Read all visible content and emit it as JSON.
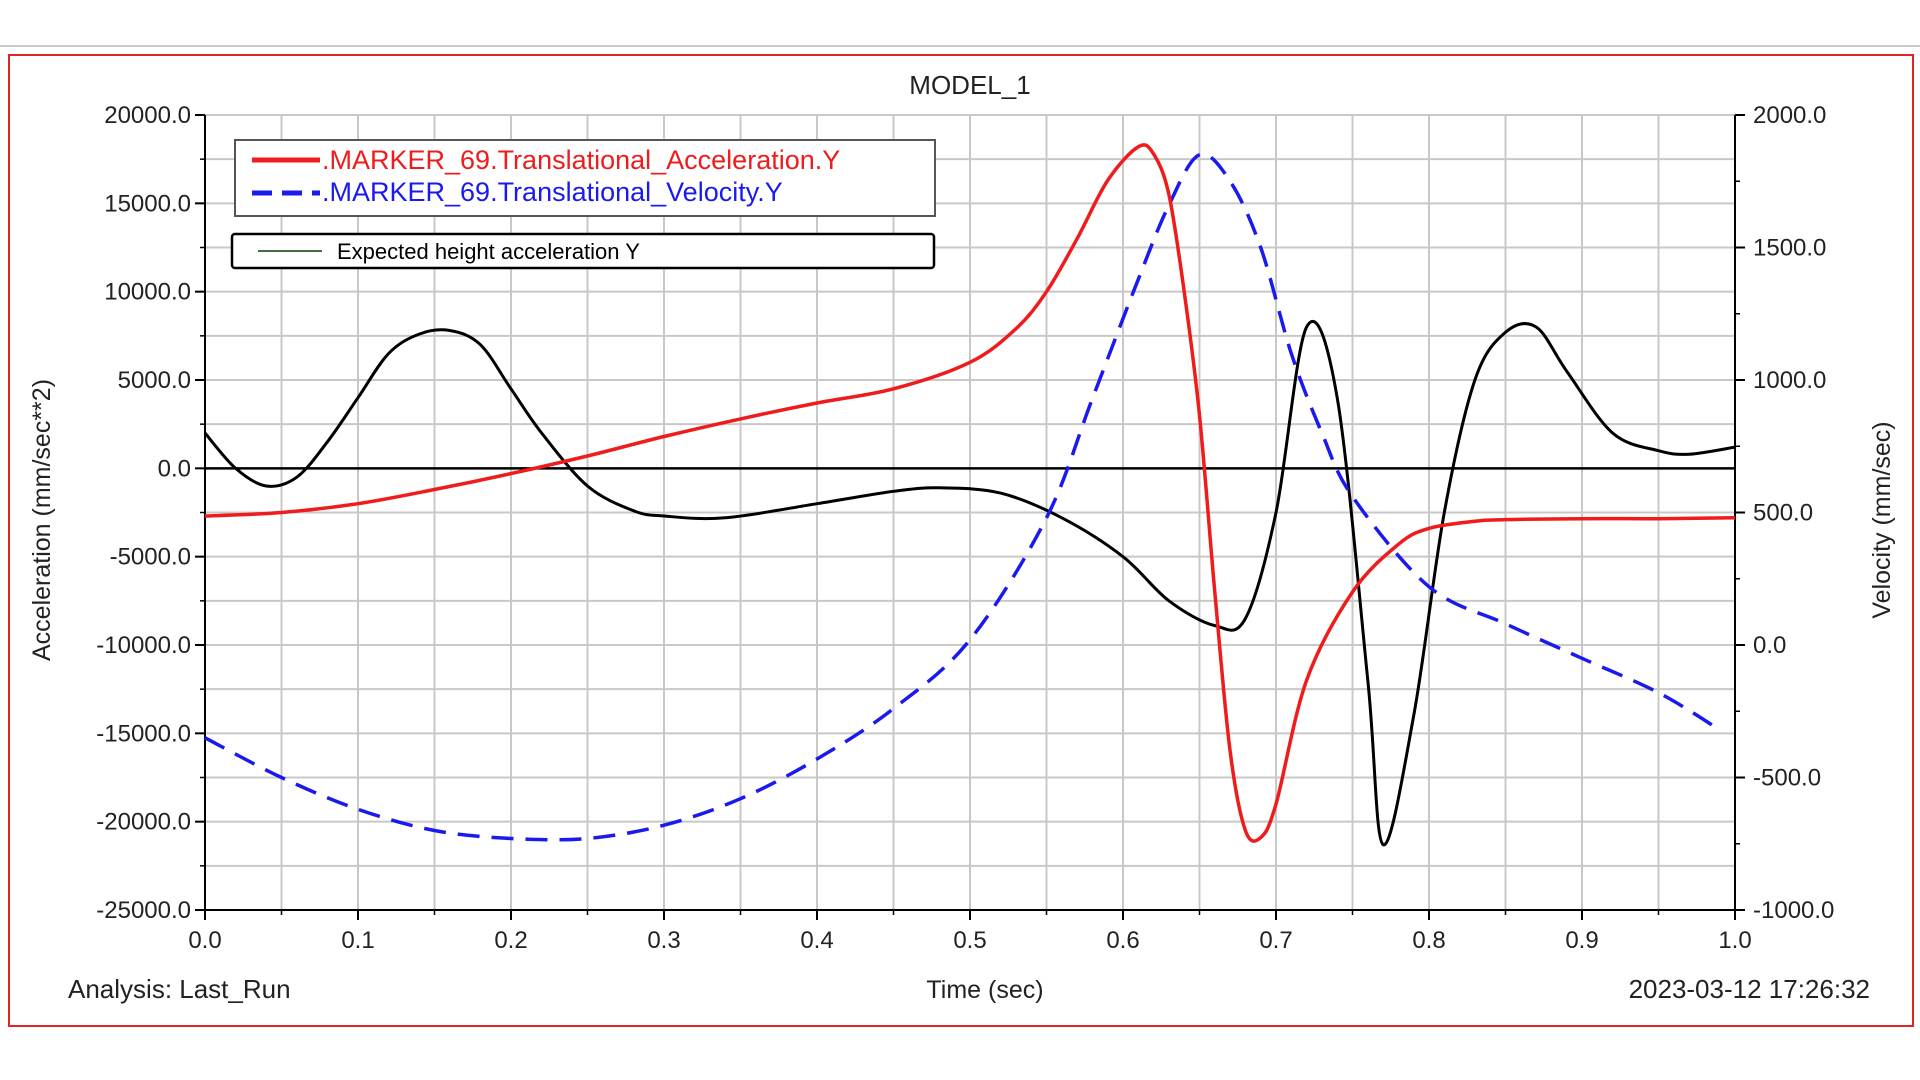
{
  "chart_data": {
    "type": "line",
    "title": "MODEL_1",
    "xlabel": "Time (sec)",
    "ylabel_left": "Acceleration (mm/sec**2)",
    "ylabel_right": "Velocity (mm/sec)",
    "xlim": [
      0.0,
      1.0
    ],
    "ylim_left": [
      -25000.0,
      20000.0
    ],
    "ylim_right": [
      -1000.0,
      2000.0
    ],
    "x_ticks": [
      "0.0",
      "0.1",
      "0.2",
      "0.3",
      "0.4",
      "0.5",
      "0.6",
      "0.7",
      "0.8",
      "0.9",
      "1.0"
    ],
    "y_left_ticks": [
      "20000.0",
      "15000.0",
      "10000.0",
      "5000.0",
      "0.0",
      "-5000.0",
      "-10000.0",
      "-15000.0",
      "-20000.0",
      "-25000.0"
    ],
    "y_right_ticks": [
      "2000.0",
      "1500.0",
      "1000.0",
      "500.0",
      "0.0",
      "-500.0",
      "-1000.0"
    ],
    "grid": true,
    "legend_position": "top-left",
    "footer_left": "Analysis:  Last_Run",
    "footer_right": "2023-03-12 17:26:32",
    "series": [
      {
        "name": ".MARKER_69.Translational_Acceleration.Y",
        "axis": "left",
        "color": "#ee1c1c",
        "style": "solid",
        "x": [
          0.0,
          0.05,
          0.1,
          0.15,
          0.2,
          0.25,
          0.3,
          0.35,
          0.4,
          0.45,
          0.5,
          0.53,
          0.55,
          0.57,
          0.59,
          0.61,
          0.62,
          0.63,
          0.64,
          0.65,
          0.66,
          0.67,
          0.68,
          0.69,
          0.7,
          0.72,
          0.75,
          0.78,
          0.8,
          0.83,
          0.85,
          0.9,
          0.95,
          1.0
        ],
        "y": [
          -2700,
          -2500,
          -2000,
          -1200,
          -300,
          700,
          1800,
          2800,
          3700,
          4500,
          6000,
          7900,
          10000,
          13000,
          16300,
          18200,
          17800,
          15500,
          10000,
          3000,
          -7000,
          -16000,
          -20500,
          -20900,
          -19000,
          -12000,
          -7000,
          -4300,
          -3400,
          -3000,
          -2900,
          -2850,
          -2850,
          -2800
        ]
      },
      {
        "name": ".MARKER_69.Translational_Velocity.Y",
        "axis": "right",
        "color": "#1a1aee",
        "style": "dashed",
        "x": [
          0.0,
          0.05,
          0.1,
          0.15,
          0.2,
          0.25,
          0.3,
          0.35,
          0.4,
          0.45,
          0.5,
          0.55,
          0.58,
          0.61,
          0.63,
          0.65,
          0.67,
          0.69,
          0.71,
          0.73,
          0.75,
          0.8,
          0.85,
          0.9,
          0.95,
          0.99
        ],
        "y": [
          -350,
          -500,
          -620,
          -700,
          -730,
          -730,
          -680,
          -580,
          -430,
          -240,
          20,
          480,
          930,
          1380,
          1660,
          1850,
          1750,
          1500,
          1100,
          800,
          560,
          220,
          80,
          -50,
          -180,
          -320
        ]
      },
      {
        "name": "Expected height acceleration Y",
        "axis": "left",
        "color": "#000000",
        "style": "solid",
        "x": [
          0.0,
          0.02,
          0.04,
          0.06,
          0.08,
          0.1,
          0.12,
          0.14,
          0.16,
          0.18,
          0.2,
          0.22,
          0.25,
          0.28,
          0.3,
          0.34,
          0.4,
          0.45,
          0.48,
          0.52,
          0.56,
          0.6,
          0.63,
          0.66,
          0.68,
          0.7,
          0.72,
          0.74,
          0.76,
          0.77,
          0.79,
          0.81,
          0.83,
          0.85,
          0.87,
          0.89,
          0.92,
          0.95,
          0.97,
          1.0
        ],
        "y": [
          2000,
          0,
          -1000,
          -500,
          1500,
          4000,
          6500,
          7600,
          7800,
          7000,
          4500,
          2000,
          -1000,
          -2400,
          -2700,
          -2800,
          -2000,
          -1300,
          -1100,
          -1400,
          -2800,
          -5000,
          -7500,
          -8900,
          -8500,
          -2500,
          8000,
          4000,
          -12000,
          -21300,
          -14000,
          -2500,
          5000,
          7700,
          8000,
          5500,
          2000,
          1000,
          800,
          1200
        ]
      }
    ]
  }
}
